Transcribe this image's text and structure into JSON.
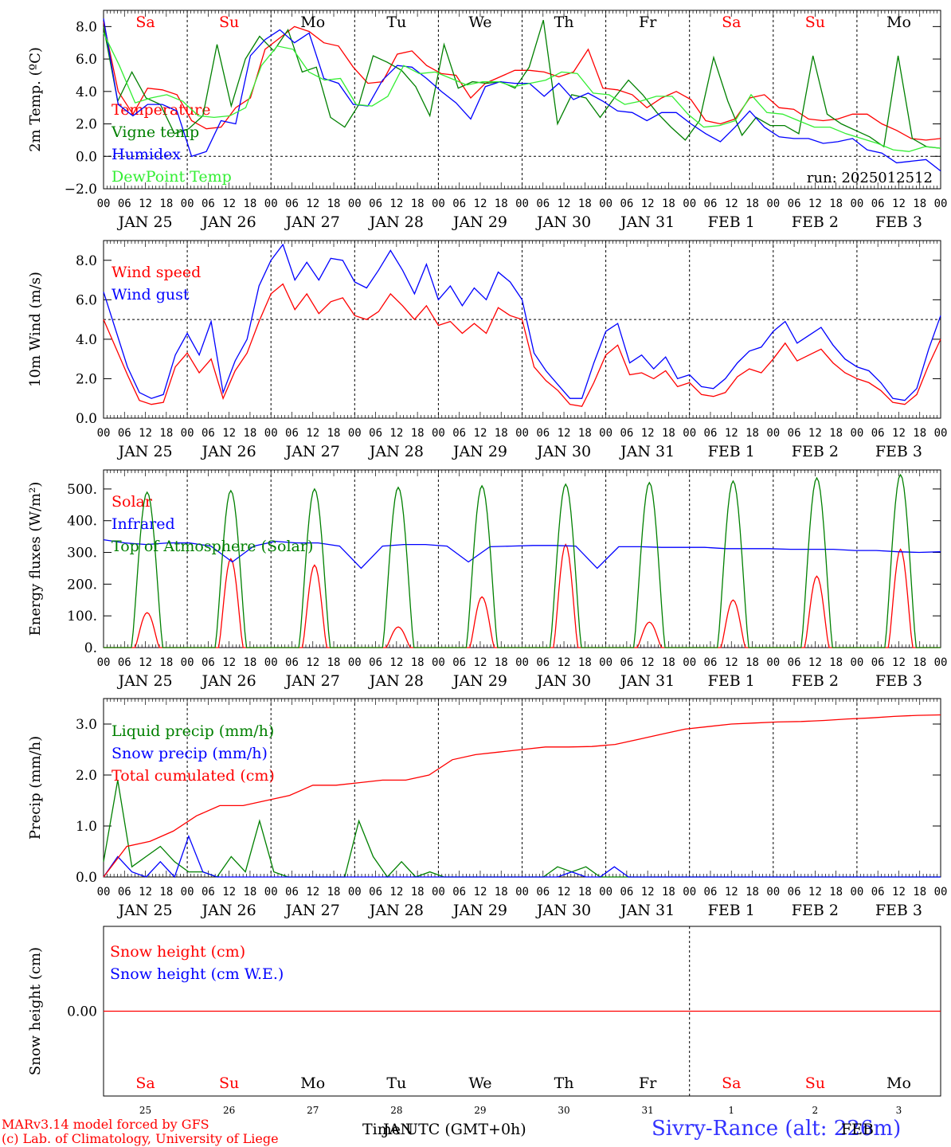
{
  "colors": {
    "red": "#ff0000",
    "green": "#008000",
    "blue": "#0000ff",
    "lightgreen": "#33ee33",
    "title": "#3333ff"
  },
  "footer": {
    "credit_line1": "MARv3.14 model forced by GFS",
    "credit_line2": "(c) Lab. of Climatology, University of Liege",
    "xlabel": "Time UTC (GMT+0h)",
    "xlabel_overlap": "JAN",
    "xlabel_overlap2": "FEB",
    "station": "Sivry-Rance (alt: 226m)"
  },
  "time_axis": {
    "days": 10,
    "hour_labels": [
      "00",
      "06",
      "12",
      "18"
    ],
    "date_labels": [
      "JAN 25",
      "JAN 26",
      "JAN 27",
      "JAN 28",
      "JAN 29",
      "JAN 30",
      "JAN 31",
      "FEB  1",
      "FEB  2",
      "FEB  3"
    ],
    "weekday_labels": [
      "Sa",
      "Su",
      "Mo",
      "Tu",
      "We",
      "Th",
      "Fr",
      "Sa",
      "Su",
      "Mo"
    ],
    "weekday_colors": [
      "#ff0000",
      "#ff0000",
      "#000000",
      "#000000",
      "#000000",
      "#000000",
      "#000000",
      "#ff0000",
      "#ff0000",
      "#000000"
    ],
    "day_numbers": [
      "25",
      "26",
      "27",
      "28",
      "29",
      "30",
      "31",
      "1",
      "2",
      "3"
    ]
  },
  "chart_data": [
    {
      "type": "line",
      "ylabel": "2m Temp. (ºC)",
      "ylim": [
        -2,
        9
      ],
      "yticks": [
        "−2.0",
        "0.0",
        "2.0",
        "4.0",
        "6.0",
        "8.0"
      ],
      "ytick_values": [
        -2,
        0,
        2,
        4,
        6,
        8
      ],
      "ref_line": 0,
      "annotation": "run: 2025012512",
      "x_hours": [
        0,
        3,
        6,
        9,
        12,
        15,
        18,
        21,
        24,
        27,
        30,
        33,
        36,
        39,
        42,
        45,
        48,
        51,
        54,
        57,
        60,
        63,
        66,
        69,
        72,
        75,
        78,
        81,
        84,
        87,
        90,
        93,
        96,
        99,
        102,
        105,
        108,
        111,
        114,
        117,
        120,
        123,
        126,
        129,
        132,
        135,
        138,
        141,
        144,
        147,
        150,
        153,
        156,
        159,
        162,
        165,
        168,
        171,
        174,
        177,
        180,
        183,
        186,
        189,
        192,
        195,
        198,
        201,
        204,
        207,
        210,
        213,
        216,
        219,
        222,
        225,
        228,
        231,
        234,
        237,
        240
      ],
      "series": [
        {
          "name": "Temperature",
          "color": "#ff0000",
          "values": [
            8.3,
            4.0,
            2.6,
            4.2,
            4.1,
            3.8,
            2.2,
            1.7,
            1.8,
            3.0,
            3.6,
            6.6,
            7.3,
            8.0,
            7.7,
            7.0,
            6.8,
            5.5,
            4.5,
            4.6,
            6.3,
            6.5,
            5.6,
            5.1,
            5.0,
            3.6,
            4.5,
            4.9,
            5.3,
            5.3,
            5.2,
            4.9,
            5.2,
            6.6,
            4.2,
            4.1,
            3.8,
            3.0,
            3.6,
            4.0,
            3.5,
            2.2,
            2.0,
            2.3,
            3.6,
            3.8,
            3.0,
            2.9,
            2.3,
            2.2,
            2.3,
            2.6,
            2.6,
            2.0,
            1.6,
            1.1,
            1.0,
            1.1
          ]
        },
        {
          "name": "Vigne temp",
          "color": "#008000",
          "values": [
            8.0,
            3.4,
            5.2,
            3.6,
            3.2,
            1.4,
            1.7,
            2.5,
            6.9,
            3.1,
            6.0,
            7.4,
            6.5,
            7.8,
            5.2,
            5.5,
            2.4,
            1.8,
            3.2,
            6.2,
            5.8,
            5.3,
            4.3,
            2.5,
            6.9,
            4.2,
            4.6,
            4.5,
            4.6,
            4.2,
            5.5,
            8.4,
            2.0,
            3.8,
            3.6,
            2.4,
            3.6,
            4.7,
            3.8,
            2.7,
            1.8,
            1.0,
            2.2,
            6.1,
            3.4,
            1.3,
            2.4,
            1.9,
            1.9,
            1.4,
            6.2,
            2.6,
            2.0,
            1.6,
            1.2,
            0.6,
            6.2,
            1.1,
            0.6,
            0.5
          ]
        },
        {
          "name": "Humidex",
          "color": "#0000ff",
          "values": [
            8.5,
            3.2,
            2.5,
            3.2,
            3.2,
            2.8,
            0.0,
            0.3,
            2.2,
            2.0,
            6.2,
            7.2,
            7.8,
            7.0,
            7.6,
            4.8,
            4.5,
            3.2,
            3.1,
            4.7,
            5.6,
            5.5,
            4.8,
            4.0,
            3.3,
            2.3,
            4.3,
            4.6,
            4.5,
            4.5,
            3.7,
            4.5,
            3.5,
            3.9,
            3.4,
            2.8,
            2.7,
            2.2,
            2.7,
            2.7,
            2.0,
            1.4,
            0.9,
            1.8,
            2.8,
            1.8,
            1.2,
            1.1,
            1.1,
            0.8,
            0.9,
            1.1,
            0.4,
            0.2,
            -0.4,
            -0.3,
            -0.2,
            -0.9
          ]
        },
        {
          "name": "DewPoint Temp",
          "color": "#33ee33",
          "values": [
            7.6,
            5.6,
            3.3,
            3.6,
            3.8,
            3.4,
            2.5,
            2.4,
            2.5,
            3.0,
            5.6,
            6.8,
            6.6,
            5.2,
            4.7,
            4.8,
            3.2,
            3.1,
            3.7,
            5.6,
            5.1,
            5.2,
            4.8,
            4.4,
            4.6,
            4.6,
            4.3,
            4.5,
            4.7,
            5.2,
            5.1,
            3.9,
            3.8,
            3.2,
            3.4,
            3.7,
            3.7,
            2.6,
            1.8,
            1.9,
            2.2,
            3.8,
            2.7,
            2.6,
            2.2,
            1.8,
            1.8,
            1.4,
            1.1,
            0.8,
            0.4,
            0.3,
            0.6,
            0.5
          ]
        }
      ]
    },
    {
      "type": "line",
      "ylabel": "10m Wind (m/s)",
      "ylim": [
        0,
        9
      ],
      "yticks": [
        "0.0",
        "2.0",
        "4.0",
        "6.0",
        "8.0"
      ],
      "ytick_values": [
        0,
        2,
        4,
        6,
        8
      ],
      "ref_line": 5,
      "series": [
        {
          "name": "Wind speed",
          "color": "#ff0000",
          "values": [
            5.0,
            3.6,
            2.2,
            0.9,
            0.7,
            0.8,
            2.6,
            3.3,
            2.3,
            3.0,
            1.0,
            2.4,
            3.3,
            4.9,
            6.3,
            6.8,
            5.5,
            6.3,
            5.3,
            5.9,
            6.1,
            5.2,
            5.0,
            5.4,
            6.3,
            5.7,
            5.0,
            5.7,
            4.7,
            4.9,
            4.3,
            4.8,
            4.3,
            5.6,
            5.2,
            5.0,
            2.6,
            1.9,
            1.4,
            0.7,
            0.6,
            1.8,
            3.2,
            3.7,
            2.2,
            2.3,
            2.0,
            2.4,
            1.6,
            1.8,
            1.2,
            1.1,
            1.3,
            2.1,
            2.5,
            2.3,
            3.0,
            3.8,
            2.9,
            3.2,
            3.5,
            2.8,
            2.3,
            2.0,
            1.8,
            1.4,
            0.8,
            0.7,
            1.2,
            2.7,
            4.0
          ]
        },
        {
          "name": "Wind gust",
          "color": "#0000ff",
          "values": [
            6.4,
            4.5,
            2.6,
            1.3,
            1.0,
            1.2,
            3.2,
            4.3,
            3.2,
            4.9,
            1.3,
            2.9,
            4.0,
            6.7,
            8.0,
            8.8,
            7.0,
            7.9,
            7.0,
            8.1,
            8.0,
            6.9,
            6.6,
            7.5,
            8.5,
            7.5,
            6.3,
            7.8,
            6.0,
            6.7,
            5.7,
            6.6,
            6.0,
            7.4,
            6.9,
            6.0,
            3.3,
            2.4,
            1.7,
            1.0,
            1.0,
            2.8,
            4.4,
            4.8,
            2.8,
            3.2,
            2.5,
            3.1,
            2.0,
            2.2,
            1.6,
            1.5,
            2.0,
            2.8,
            3.4,
            3.6,
            4.4,
            4.9,
            3.8,
            4.2,
            4.6,
            3.7,
            3.0,
            2.6,
            2.4,
            1.8,
            1.0,
            0.9,
            1.5,
            3.5,
            5.2
          ]
        }
      ]
    },
    {
      "type": "line",
      "ylabel": "Energy fluxes (W/m²)",
      "ylim": [
        0,
        560
      ],
      "yticks": [
        "0.",
        "100.",
        "200.",
        "300.",
        "400.",
        "500."
      ],
      "ytick_values": [
        0,
        100,
        200,
        300,
        400,
        500
      ],
      "series": [
        {
          "name": "Solar",
          "color": "#ff0000",
          "peaks": [
            110,
            280,
            260,
            65,
            160,
            325,
            80,
            150,
            225,
            310
          ]
        },
        {
          "name": "Infrared",
          "color": "#0000ff",
          "values": [
            340,
            330,
            325,
            330,
            330,
            320,
            270,
            320,
            335,
            330,
            330,
            320,
            250,
            320,
            325,
            325,
            320,
            270,
            318,
            320,
            322,
            322,
            320,
            250,
            318,
            318,
            316,
            316,
            316,
            312,
            312,
            312,
            310,
            310,
            310,
            306,
            306,
            302,
            300,
            302
          ]
        },
        {
          "name": "Top of Atmosphere (Solar)",
          "color": "#008000",
          "peaks": [
            490,
            495,
            500,
            505,
            510,
            515,
            520,
            525,
            535,
            545
          ]
        }
      ]
    },
    {
      "type": "line",
      "ylabel": "Precip (mm/h)",
      "ylim": [
        0,
        3.5
      ],
      "yticks": [
        "0.0",
        "1.0",
        "2.0",
        "3.0"
      ],
      "ytick_values": [
        0,
        1,
        2,
        3
      ],
      "series": [
        {
          "name": "Liquid precip (mm/h)",
          "color": "#008000",
          "values": [
            0.3,
            1.9,
            0.2,
            0.4,
            0.6,
            0.3,
            0.1,
            0.1,
            0.0,
            0.4,
            0.1,
            1.1,
            0.1,
            0.0,
            0.0,
            0.0,
            0.0,
            0.0,
            1.1,
            0.4,
            0.0,
            0.3,
            0.0,
            0.1,
            0.0,
            0.0,
            0.0,
            0.0,
            0.0,
            0.0,
            0.0,
            0.0,
            0.2,
            0.1,
            0.2,
            0.0,
            0.0,
            0.0,
            0.0,
            0.0,
            0.0,
            0.0,
            0.0,
            0.0,
            0.0,
            0.0,
            0.0,
            0.0,
            0.0,
            0.0,
            0.0,
            0.0,
            0.0,
            0.0,
            0.0,
            0.0,
            0.0,
            0.0,
            0.0,
            0.0
          ]
        },
        {
          "name": "Snow precip (mm/h)",
          "color": "#0000ff",
          "values": [
            0.0,
            0.4,
            0.1,
            0.0,
            0.3,
            0.0,
            0.8,
            0.1,
            0.0,
            0.0,
            0.0,
            0.0,
            0.0,
            0.0,
            0.0,
            0.0,
            0.0,
            0.0,
            0.0,
            0.0,
            0.0,
            0.0,
            0.0,
            0.0,
            0.0,
            0.0,
            0.0,
            0.0,
            0.0,
            0.0,
            0.0,
            0.0,
            0.0,
            0.1,
            0.0,
            0.0,
            0.2,
            0.0,
            0.0,
            0.0,
            0.0,
            0.0,
            0.0,
            0.0,
            0.0,
            0.0,
            0.0,
            0.0,
            0.0,
            0.0,
            0.0,
            0.0,
            0.0,
            0.0,
            0.0,
            0.0,
            0.0,
            0.0,
            0.0,
            0.0
          ]
        },
        {
          "name": "Total cumulated (cm)",
          "color": "#ff0000",
          "values": [
            0.0,
            0.6,
            0.7,
            0.9,
            1.2,
            1.4,
            1.4,
            1.5,
            1.6,
            1.8,
            1.8,
            1.85,
            1.9,
            1.9,
            2.0,
            2.3,
            2.4,
            2.45,
            2.5,
            2.55,
            2.55,
            2.56,
            2.6,
            2.7,
            2.8,
            2.9,
            2.95,
            3.0,
            3.02,
            3.04,
            3.05,
            3.07,
            3.1,
            3.12,
            3.15,
            3.17,
            3.18
          ]
        }
      ]
    },
    {
      "type": "line",
      "ylabel": "Snow height (cm)",
      "ylim": [
        -1,
        1
      ],
      "yticks": [
        "0.00"
      ],
      "ytick_values": [
        0
      ],
      "series": [
        {
          "name": "Snow height (cm)",
          "color": "#ff0000",
          "values": [
            0,
            0
          ]
        },
        {
          "name": "Snow height (cm W.E.)",
          "color": "#0000ff",
          "values": [
            0,
            0
          ]
        }
      ]
    }
  ]
}
